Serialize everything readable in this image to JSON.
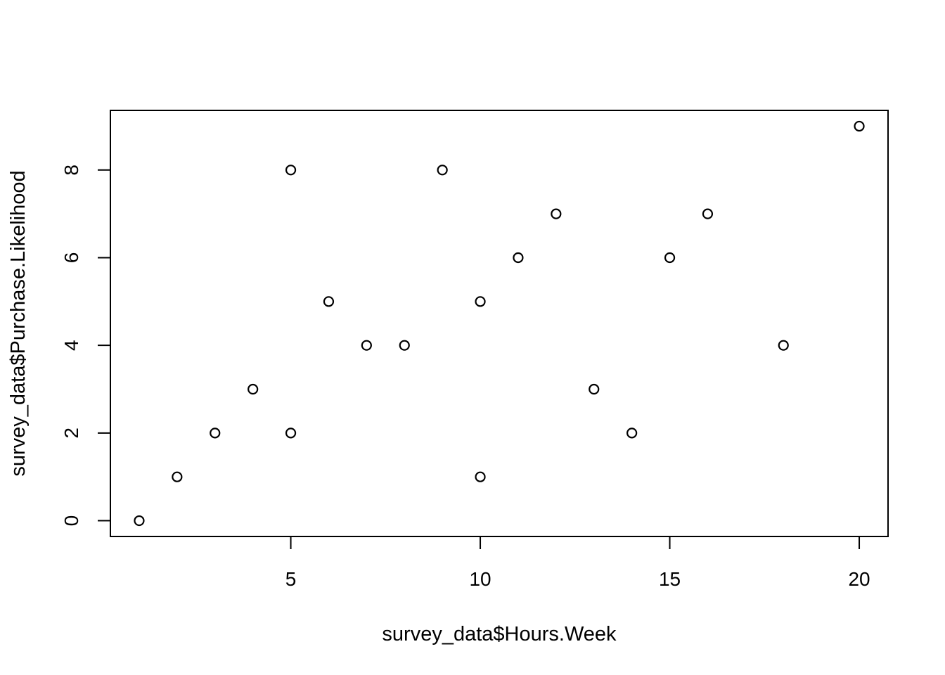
{
  "chart_data": {
    "type": "scatter",
    "title": "",
    "xlabel": "survey_data$Hours.Week",
    "ylabel": "survey_data$Purchase.Likelihood",
    "xlim": [
      0.24,
      20.76
    ],
    "ylim": [
      -0.36,
      9.36
    ],
    "xticks": [
      5,
      10,
      15,
      20
    ],
    "yticks": [
      0,
      2,
      4,
      6,
      8
    ],
    "grid": false,
    "legend": "none",
    "marker": "open-circle",
    "colors": {
      "point": "#000000",
      "axis": "#000000",
      "background": "#ffffff"
    },
    "points": [
      {
        "x": 1,
        "y": 0
      },
      {
        "x": 2,
        "y": 1
      },
      {
        "x": 3,
        "y": 2
      },
      {
        "x": 4,
        "y": 3
      },
      {
        "x": 5,
        "y": 8
      },
      {
        "x": 5,
        "y": 2
      },
      {
        "x": 6,
        "y": 5
      },
      {
        "x": 7,
        "y": 4
      },
      {
        "x": 8,
        "y": 4
      },
      {
        "x": 9,
        "y": 8
      },
      {
        "x": 10,
        "y": 5
      },
      {
        "x": 10,
        "y": 1
      },
      {
        "x": 11,
        "y": 6
      },
      {
        "x": 12,
        "y": 7
      },
      {
        "x": 13,
        "y": 3
      },
      {
        "x": 14,
        "y": 2
      },
      {
        "x": 15,
        "y": 6
      },
      {
        "x": 16,
        "y": 7
      },
      {
        "x": 18,
        "y": 4
      },
      {
        "x": 20,
        "y": 9
      }
    ]
  }
}
